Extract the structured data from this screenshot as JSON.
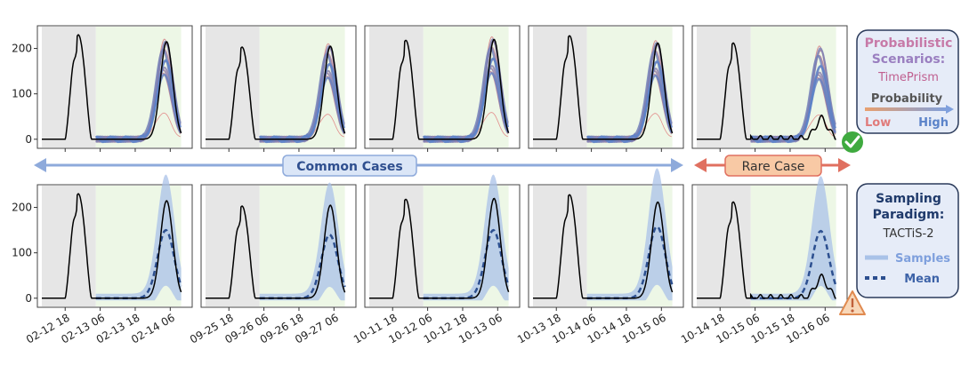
{
  "figure": {
    "common_label": "Common Cases",
    "rare_label": "Rare Case",
    "legend_top": {
      "title_line1": "Probabilistic",
      "title_line2": "Scenarios:",
      "method": "TimePrism",
      "prob_label": "Probability",
      "low": "Low",
      "high": "High"
    },
    "legend_bottom": {
      "title_line1": "Sampling",
      "title_line2": "Paradigm:",
      "method": "TACTiS-2",
      "samples_label": "Samples",
      "mean_label": "Mean"
    },
    "colors": {
      "history": "#000000",
      "context_bg": "#e6e6e6",
      "forecast_bg": "#edf7e6",
      "mean": "#2c4f8f",
      "samples": "#a9c2e8",
      "low_prob": "#e07b7b",
      "high_prob": "#5b83c9",
      "common_arrow": "#8eaadb",
      "rare_arrow": "#e07060"
    },
    "icons": {
      "ok": "check-badge-icon",
      "warn": "warning-triangle-icon"
    }
  },
  "chart_data": {
    "type": "line",
    "rows": [
      "TimePrism",
      "TACTiS-2"
    ],
    "yticks": [
      0,
      100,
      200
    ],
    "ylim": [
      -20,
      250
    ],
    "panels": [
      {
        "id": "p1",
        "xticks": [
          "02-12 18",
          "02-13 06",
          "02-13 18",
          "02-14 06"
        ],
        "peak1": 230,
        "history_peak2": 215,
        "mean_peak": 150,
        "case": "common"
      },
      {
        "id": "p2",
        "xticks": [
          "09-25 18",
          "09-26 06",
          "09-26 18",
          "09-27 06"
        ],
        "peak1": 203,
        "history_peak2": 205,
        "mean_peak": 140,
        "case": "common"
      },
      {
        "id": "p3",
        "xticks": [
          "10-11 18",
          "10-12 06",
          "10-12 18",
          "10-13 06"
        ],
        "peak1": 218,
        "history_peak2": 220,
        "mean_peak": 150,
        "case": "common"
      },
      {
        "id": "p4",
        "xticks": [
          "10-13 18",
          "10-14 06",
          "10-14 18",
          "10-15 06"
        ],
        "peak1": 228,
        "history_peak2": 212,
        "mean_peak": 158,
        "case": "common"
      },
      {
        "id": "p5",
        "xticks": [
          "10-14 18",
          "10-15 06",
          "10-15 18",
          "10-16 06"
        ],
        "peak1": 212,
        "history_peak2": 45,
        "mean_peak": 148,
        "case": "rare"
      }
    ]
  }
}
